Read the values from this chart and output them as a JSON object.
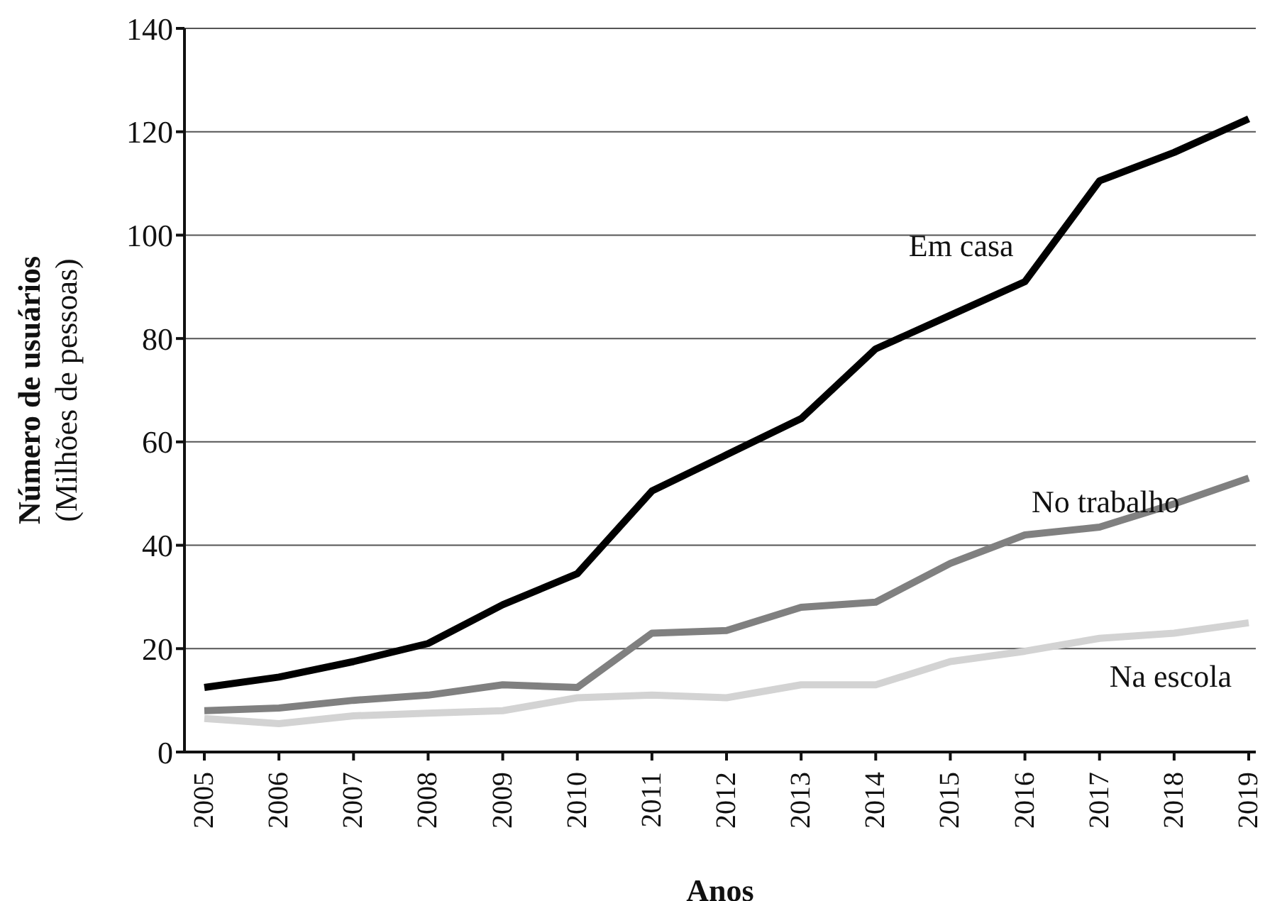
{
  "chart_data": {
    "type": "line",
    "xlabel": "Anos",
    "ylabel": "Número de usuários\n(Milhões de pessoas)",
    "categories": [
      "2005",
      "2006",
      "2007",
      "2008",
      "2009",
      "2010",
      "2011",
      "2012",
      "2013",
      "2014",
      "2015",
      "2016",
      "2017",
      "2018",
      "2019"
    ],
    "series": [
      {
        "name": "Em casa",
        "color": "#000000",
        "values": [
          12.5,
          14.5,
          17.5,
          21,
          28.5,
          34.5,
          50.5,
          57.5,
          64.5,
          78,
          84.5,
          91,
          110.5,
          116,
          122.5
        ]
      },
      {
        "name": "No trabalho",
        "color": "#808080",
        "values": [
          8,
          8.5,
          10,
          11,
          13,
          12.5,
          23,
          23.5,
          28,
          29,
          36.5,
          42,
          43.5,
          48,
          53
        ]
      },
      {
        "name": "Na escola",
        "color": "#d3d3d3",
        "values": [
          6.5,
          5.5,
          7,
          7.5,
          8,
          10.5,
          11,
          10.5,
          13,
          13,
          17.5,
          19.5,
          22,
          23,
          25
        ]
      }
    ],
    "ylim": [
      0,
      140
    ],
    "yticks": [
      0,
      20,
      40,
      60,
      80,
      100,
      120,
      140
    ],
    "grid": "y",
    "legend": false,
    "marker": "none",
    "line_style": "solid"
  }
}
